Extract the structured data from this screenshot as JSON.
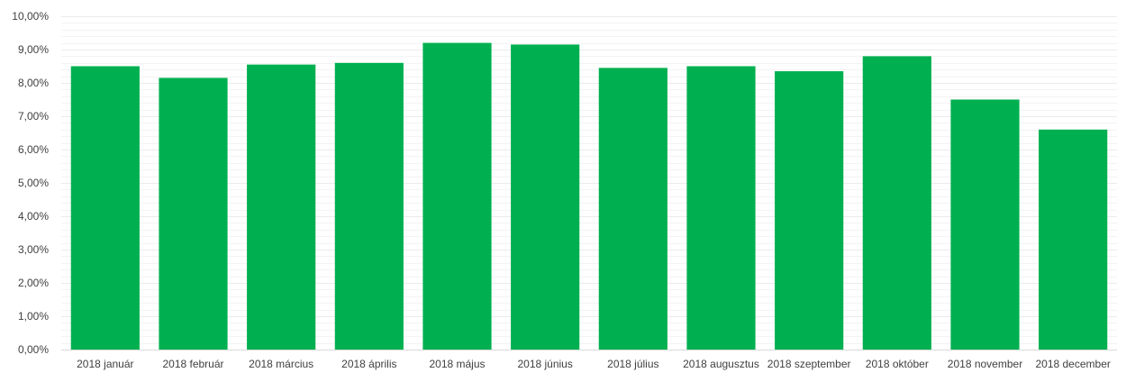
{
  "chart_data": {
    "type": "bar",
    "title": "",
    "xlabel": "",
    "ylabel": "",
    "ylim": [
      0,
      10
    ],
    "y_tick_step": 1,
    "y_tick_labels": [
      "0,00%",
      "1,00%",
      "2,00%",
      "3,00%",
      "4,00%",
      "5,00%",
      "6,00%",
      "7,00%",
      "8,00%",
      "9,00%",
      "10,00%"
    ],
    "categories": [
      "2018 január",
      "2018 február",
      "2018 március",
      "2018 április",
      "2018 május",
      "2018 június",
      "2018 július",
      "2018 augusztus",
      "2018 szeptember",
      "2018 október",
      "2018 november",
      "2018 december"
    ],
    "values": [
      8.5,
      8.15,
      8.55,
      8.6,
      9.2,
      9.15,
      8.45,
      8.5,
      8.35,
      8.8,
      7.5,
      6.6
    ],
    "unit": "%",
    "grid": true,
    "legend": "none",
    "colors": {
      "bar": "#00B050",
      "grid": "#ebebeb",
      "axis": "#d9d9d9",
      "text": "#404040"
    }
  }
}
